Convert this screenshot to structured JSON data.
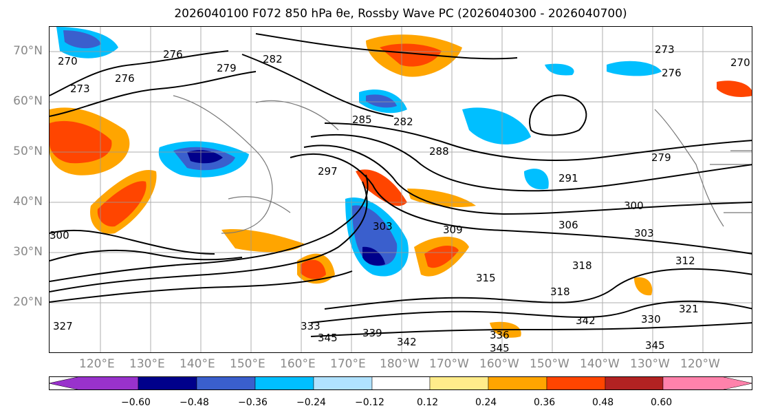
{
  "title": "2026040100 F072 850 hPa θe, Rossby Wave PC (2026040300 - 2026040700)",
  "lat_labels": [
    "70°N",
    "60°N",
    "50°N",
    "40°N",
    "30°N",
    "20°N"
  ],
  "lon_labels": [
    "120°E",
    "130°E",
    "140°E",
    "150°E",
    "160°E",
    "170°E",
    "180°W",
    "170°W",
    "160°W",
    "150°W",
    "140°W",
    "130°W",
    "120°W"
  ],
  "contour_labels": [
    "270",
    "276",
    "273",
    "276",
    "279",
    "282",
    "273",
    "276",
    "270",
    "285",
    "282",
    "288",
    "291",
    "279",
    "297",
    "300",
    "303",
    "306",
    "309",
    "303",
    "312",
    "315",
    "318",
    "318",
    "321",
    "330",
    "333",
    "342",
    "345",
    "339",
    "342",
    "345",
    "345",
    "336",
    "300",
    "327"
  ],
  "colorbar": {
    "ticks": [
      "−0.60",
      "−0.48",
      "−0.36",
      "−0.24",
      "−0.12",
      "0.12",
      "0.24",
      "0.36",
      "0.48",
      "0.60"
    ],
    "colors": [
      "#9932cc",
      "#00008b",
      "#3a5fcd",
      "#00bfff",
      "#b0e2ff",
      "#ffffff",
      "#ffec8b",
      "#ffa500",
      "#ff4500",
      "#b22222",
      "#ff82ab",
      "#ff69b4"
    ]
  }
}
